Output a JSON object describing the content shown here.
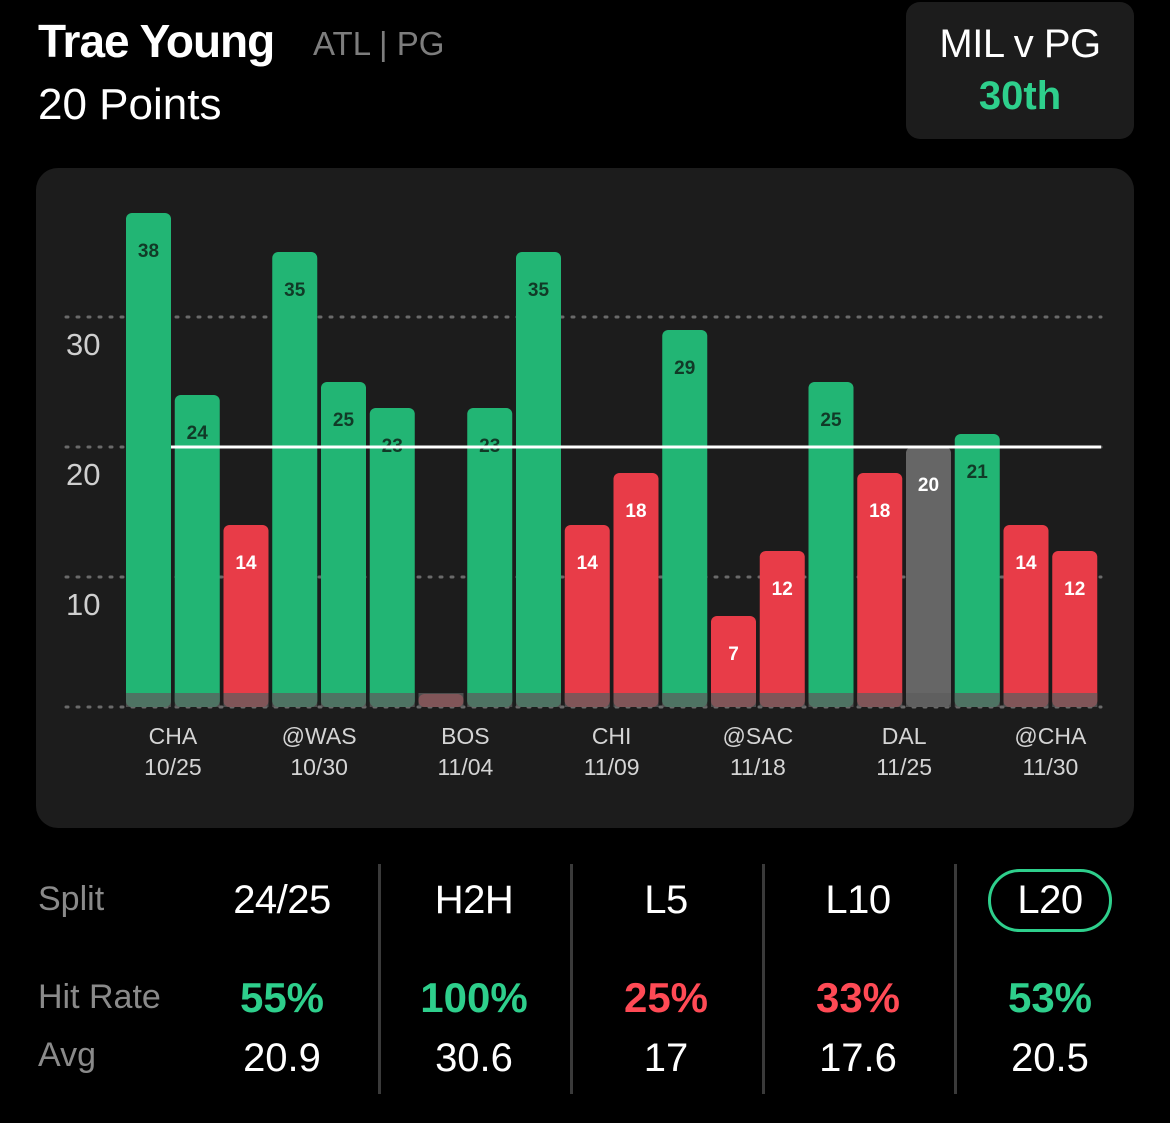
{
  "header": {
    "player_name": "Trae Young",
    "player_meta": "ATL | PG",
    "prop_line": "20 Points"
  },
  "matchup": {
    "title": "MIL v PG",
    "rank": "30th"
  },
  "colors": {
    "over": "#22b574",
    "under": "#e83c48",
    "push": "#666666",
    "accent": "#2ecf8c"
  },
  "chart_data": {
    "type": "bar",
    "line": 20,
    "ylim": [
      0,
      40
    ],
    "yticks": [
      10,
      20,
      30
    ],
    "grid": true,
    "values": [
      38,
      24,
      14,
      35,
      25,
      23,
      1,
      23,
      35,
      14,
      18,
      29,
      7,
      12,
      25,
      18,
      20,
      21,
      14,
      12
    ],
    "results": [
      "over",
      "over",
      "under",
      "over",
      "over",
      "over",
      "under",
      "over",
      "over",
      "under",
      "under",
      "over",
      "under",
      "under",
      "over",
      "under",
      "push",
      "over",
      "under",
      "under"
    ],
    "x_labels": [
      {
        "bar_index": 0.5,
        "team": "CHA",
        "date": "10/25"
      },
      {
        "bar_index": 3.5,
        "team": "@WAS",
        "date": "10/30"
      },
      {
        "bar_index": 6.5,
        "team": "BOS",
        "date": "11/04"
      },
      {
        "bar_index": 9.5,
        "team": "CHI",
        "date": "11/09"
      },
      {
        "bar_index": 12.5,
        "team": "@SAC",
        "date": "11/18"
      },
      {
        "bar_index": 15.5,
        "team": "DAL",
        "date": "11/25"
      },
      {
        "bar_index": 18.5,
        "team": "@CHA",
        "date": "11/30"
      }
    ]
  },
  "splits": {
    "row_labels": {
      "split": "Split",
      "hit_rate": "Hit Rate",
      "avg": "Avg"
    },
    "columns": [
      {
        "label": "24/25",
        "hit_rate": "55%",
        "hit_color": "#2ecf8c",
        "avg": "20.9",
        "active": false
      },
      {
        "label": "H2H",
        "hit_rate": "100%",
        "hit_color": "#2ecf8c",
        "avg": "30.6",
        "active": false
      },
      {
        "label": "L5",
        "hit_rate": "25%",
        "hit_color": "#ff4a55",
        "avg": "17",
        "active": false
      },
      {
        "label": "L10",
        "hit_rate": "33%",
        "hit_color": "#ff4a55",
        "avg": "17.6",
        "active": false
      },
      {
        "label": "L20",
        "hit_rate": "53%",
        "hit_color": "#2ecf8c",
        "avg": "20.5",
        "active": true
      }
    ]
  }
}
